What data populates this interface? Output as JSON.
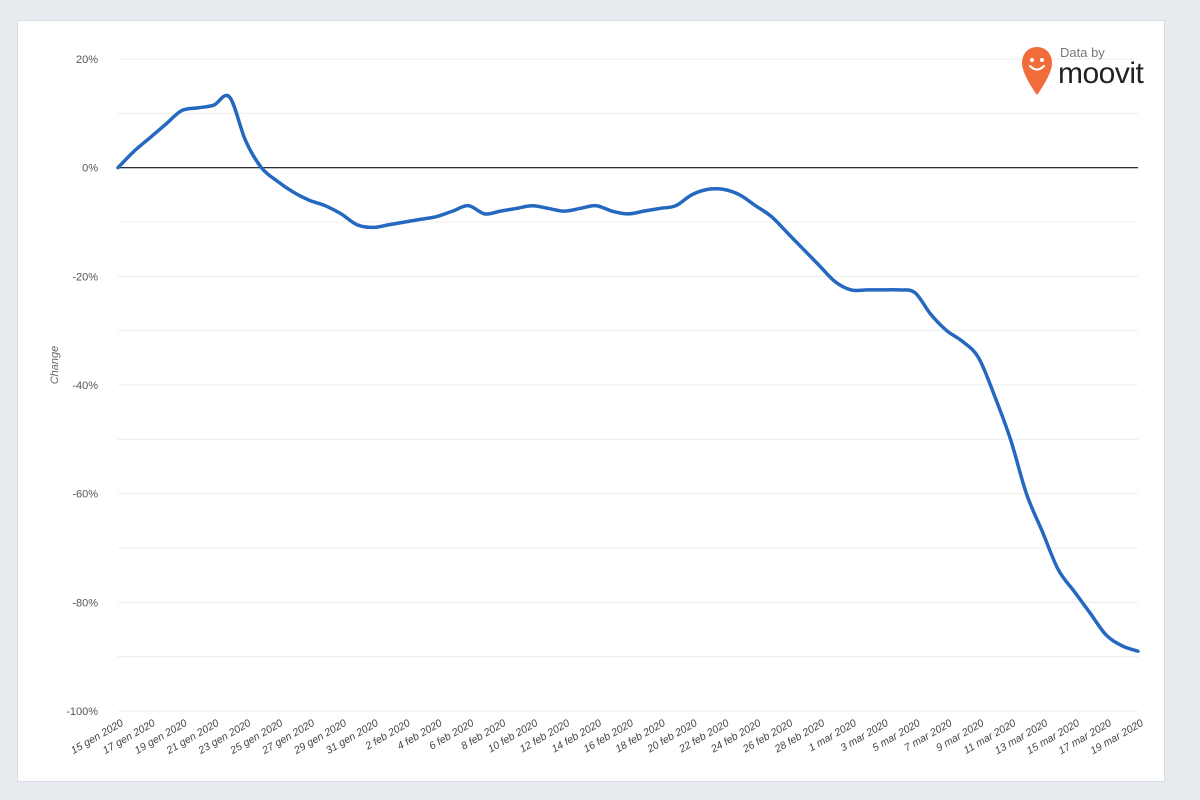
{
  "logo": {
    "caption": "Data by",
    "brand": "moovit",
    "icon": "moovit-pin-icon",
    "color": "#f26b3a"
  },
  "chart_data": {
    "type": "line",
    "title": "",
    "xlabel": "",
    "ylabel": "Change",
    "ylim": [
      -100,
      20
    ],
    "y_ticks": [
      20,
      0,
      -20,
      -40,
      -60,
      -80,
      -100
    ],
    "y_tick_labels": [
      "20%",
      "0%",
      "-20%",
      "-40%",
      "-60%",
      "-80%",
      "-100%"
    ],
    "x_tick_labels": [
      "15 gen 2020",
      "17 gen 2020",
      "19 gen 2020",
      "21 gen 2020",
      "23 gen 2020",
      "25 gen 2020",
      "27 gen 2020",
      "29 gen 2020",
      "31 gen 2020",
      "2 feb 2020",
      "4 feb 2020",
      "6 feb 2020",
      "8 feb 2020",
      "10 feb 2020",
      "12 feb 2020",
      "14 feb 2020",
      "16 feb 2020",
      "18 feb 2020",
      "20 feb 2020",
      "22 feb 2020",
      "24 feb 2020",
      "26 feb 2020",
      "28 feb 2020",
      "1 mar 2020",
      "3 mar 2020",
      "5 mar 2020",
      "7 mar 2020",
      "9 mar 2020",
      "11 mar 2020",
      "13 mar 2020",
      "15 mar 2020",
      "17 mar 2020",
      "19 mar 2020"
    ],
    "grid": true,
    "zero_line": true,
    "line_color": "#2468c0",
    "series": [
      {
        "x": [
          "15 gen 2020",
          "16 gen 2020",
          "17 gen 2020",
          "18 gen 2020",
          "19 gen 2020",
          "20 gen 2020",
          "21 gen 2020",
          "22 gen 2020",
          "23 gen 2020",
          "24 gen 2020",
          "25 gen 2020",
          "26 gen 2020",
          "27 gen 2020",
          "28 gen 2020",
          "29 gen 2020",
          "30 gen 2020",
          "31 gen 2020",
          "1 feb 2020",
          "2 feb 2020",
          "3 feb 2020",
          "4 feb 2020",
          "5 feb 2020",
          "6 feb 2020",
          "7 feb 2020",
          "8 feb 2020",
          "9 feb 2020",
          "10 feb 2020",
          "11 feb 2020",
          "12 feb 2020",
          "13 feb 2020",
          "14 feb 2020",
          "15 feb 2020",
          "16 feb 2020",
          "17 feb 2020",
          "18 feb 2020",
          "19 feb 2020",
          "20 feb 2020",
          "21 feb 2020",
          "22 feb 2020",
          "23 feb 2020",
          "24 feb 2020",
          "25 feb 2020",
          "26 feb 2020",
          "27 feb 2020",
          "28 feb 2020",
          "29 feb 2020",
          "1 mar 2020",
          "2 mar 2020",
          "3 mar 2020",
          "4 mar 2020",
          "5 mar 2020",
          "6 mar 2020",
          "7 mar 2020",
          "8 mar 2020",
          "9 mar 2020",
          "10 mar 2020",
          "11 mar 2020",
          "12 mar 2020",
          "13 mar 2020",
          "14 mar 2020",
          "15 mar 2020",
          "16 mar 2020",
          "17 mar 2020",
          "18 mar 2020",
          "19 mar 2020"
        ],
        "values": [
          0,
          3,
          5.5,
          8,
          10.5,
          11,
          11.5,
          13,
          5,
          0,
          -2.5,
          -4.5,
          -6,
          -7,
          -8.5,
          -10.5,
          -11,
          -10.5,
          -10,
          -9.5,
          -9,
          -8,
          -7,
          -8.5,
          -8,
          -7.5,
          -7,
          -7.5,
          -8,
          -7.5,
          -7,
          -8,
          -8.5,
          -8,
          -7.5,
          -7,
          -5,
          -4,
          -4,
          -5,
          -7,
          -9,
          -12,
          -15,
          -18,
          -21,
          -22.5,
          -22.5,
          -22.5,
          -22.5,
          -23,
          -27,
          -30,
          -32,
          -35,
          -42,
          -50,
          -60,
          -67,
          -74,
          -78,
          -82,
          -86,
          -88,
          -89
        ]
      }
    ]
  }
}
